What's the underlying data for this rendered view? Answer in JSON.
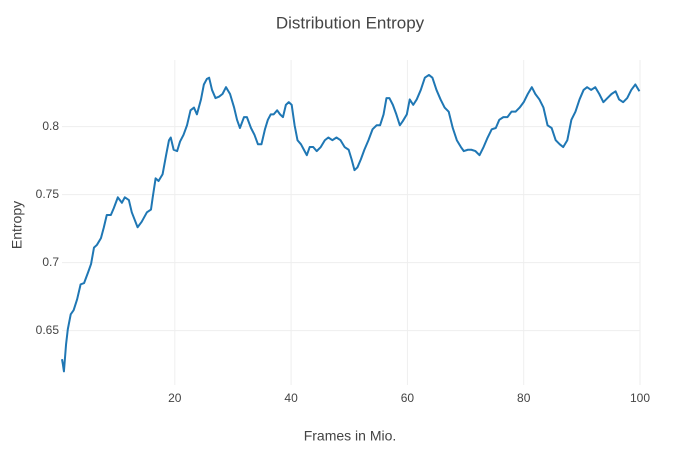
{
  "chart_data": {
    "type": "line",
    "title": "Distribution Entropy",
    "x_label": "Frames in Mio.",
    "y_label": "Entropy",
    "x": [
      0.6,
      0.76,
      0.93,
      1.3,
      1.6,
      2.1,
      2.6,
      3.2,
      3.8,
      4.4,
      5.1,
      5.6,
      6.1,
      6.6,
      7.3,
      7.8,
      8.3,
      9.0,
      9.5,
      10.2,
      10.9,
      11.4,
      12.1,
      12.6,
      13.6,
      14.3,
      15.2,
      15.9,
      16.2,
      16.7,
      17.2,
      17.9,
      18.5,
      19.0,
      19.3,
      19.8,
      20.4,
      20.9,
      21.5,
      22.1,
      22.7,
      23.3,
      23.8,
      24.5,
      25.0,
      25.5,
      25.9,
      26.4,
      27.0,
      27.6,
      28.2,
      28.8,
      29.5,
      30.2,
      30.7,
      31.2,
      31.9,
      32.4,
      33.1,
      33.7,
      34.3,
      34.9,
      35.5,
      36.0,
      36.5,
      37.0,
      37.6,
      38.1,
      38.6,
      39.1,
      39.6,
      40.1,
      40.6,
      41.1,
      41.7,
      42.2,
      42.7,
      43.2,
      43.8,
      44.4,
      45.1,
      45.8,
      46.4,
      47.1,
      47.8,
      48.5,
      49.2,
      49.9,
      50.4,
      50.9,
      51.4,
      52.0,
      52.6,
      53.3,
      54.0,
      54.7,
      55.3,
      55.9,
      56.4,
      56.9,
      57.5,
      58.1,
      58.7,
      59.2,
      59.9,
      60.4,
      61.0,
      61.6,
      62.3,
      63.0,
      63.7,
      64.3,
      65.0,
      65.7,
      66.4,
      67.1,
      67.8,
      68.5,
      69.2,
      69.7,
      70.4,
      71.0,
      71.7,
      72.4,
      73.1,
      73.8,
      74.5,
      75.2,
      75.8,
      76.5,
      77.2,
      77.9,
      78.6,
      79.3,
      80.0,
      80.7,
      81.4,
      82.0,
      82.7,
      83.4,
      84.1,
      84.8,
      85.5,
      86.2,
      86.8,
      87.5,
      88.2,
      88.9,
      89.6,
      90.3,
      90.9,
      91.6,
      92.3,
      93.0,
      93.7,
      94.4,
      95.1,
      95.8,
      96.4,
      97.1,
      97.8,
      98.5,
      99.2,
      99.9
    ],
    "series": [
      {
        "name": "Entropy",
        "color": "#1f77b4",
        "values": [
          0.629,
          0.625,
          0.62,
          0.64,
          0.651,
          0.662,
          0.665,
          0.673,
          0.684,
          0.685,
          0.693,
          0.699,
          0.711,
          0.713,
          0.718,
          0.726,
          0.735,
          0.735,
          0.74,
          0.748,
          0.744,
          0.748,
          0.746,
          0.737,
          0.726,
          0.73,
          0.737,
          0.739,
          0.748,
          0.762,
          0.76,
          0.765,
          0.779,
          0.79,
          0.792,
          0.783,
          0.782,
          0.789,
          0.794,
          0.801,
          0.812,
          0.814,
          0.809,
          0.82,
          0.831,
          0.835,
          0.836,
          0.827,
          0.821,
          0.822,
          0.824,
          0.829,
          0.824,
          0.814,
          0.805,
          0.799,
          0.807,
          0.807,
          0.799,
          0.794,
          0.787,
          0.787,
          0.798,
          0.805,
          0.809,
          0.809,
          0.812,
          0.809,
          0.807,
          0.816,
          0.818,
          0.816,
          0.801,
          0.79,
          0.787,
          0.783,
          0.779,
          0.785,
          0.785,
          0.782,
          0.785,
          0.79,
          0.792,
          0.79,
          0.792,
          0.79,
          0.785,
          0.783,
          0.776,
          0.768,
          0.77,
          0.776,
          0.783,
          0.79,
          0.798,
          0.801,
          0.801,
          0.809,
          0.821,
          0.821,
          0.816,
          0.809,
          0.801,
          0.804,
          0.809,
          0.82,
          0.816,
          0.82,
          0.827,
          0.836,
          0.838,
          0.836,
          0.827,
          0.82,
          0.814,
          0.811,
          0.799,
          0.79,
          0.785,
          0.782,
          0.783,
          0.783,
          0.782,
          0.779,
          0.785,
          0.792,
          0.798,
          0.799,
          0.805,
          0.807,
          0.807,
          0.811,
          0.811,
          0.814,
          0.818,
          0.824,
          0.829,
          0.824,
          0.82,
          0.814,
          0.801,
          0.799,
          0.79,
          0.787,
          0.785,
          0.79,
          0.805,
          0.811,
          0.82,
          0.827,
          0.829,
          0.827,
          0.829,
          0.824,
          0.818,
          0.821,
          0.824,
          0.826,
          0.82,
          0.818,
          0.821,
          0.827,
          0.831,
          0.826
        ]
      }
    ],
    "xlim": [
      0.6,
      100
    ],
    "ylim": [
      0.61,
      0.849
    ],
    "xticks": [
      20,
      40,
      60,
      80,
      100
    ],
    "yticks": [
      0.65,
      0.7,
      0.75,
      0.8
    ],
    "grid": true
  }
}
